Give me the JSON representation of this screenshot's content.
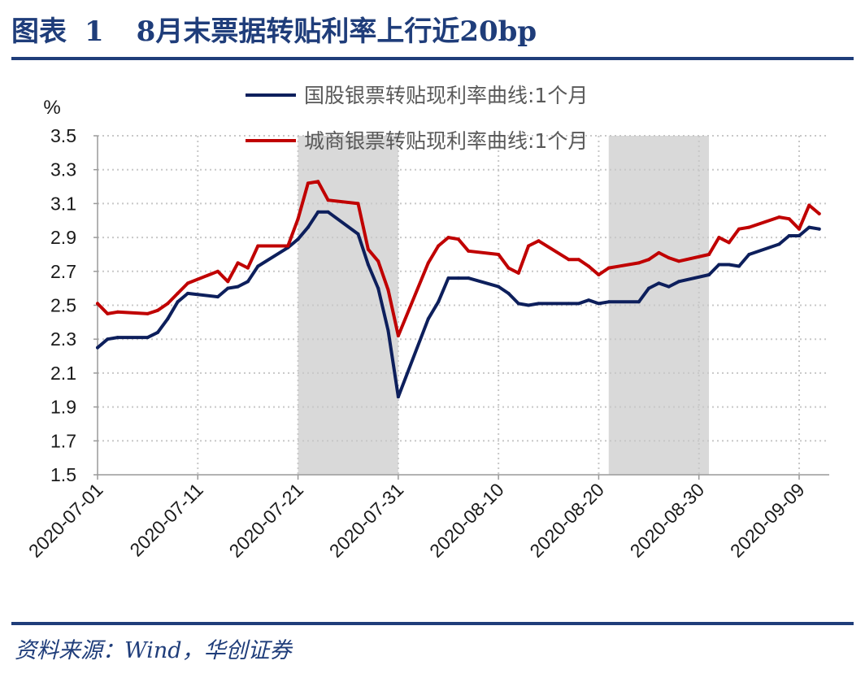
{
  "title": {
    "label": "图表",
    "number": "1",
    "text": "8月末票据转贴利率上行近20bp"
  },
  "source": "资料来源：Wind，华创证券",
  "colors": {
    "title_blue": "#1f3d7a",
    "series_navy": "#0d1f5c",
    "series_red": "#c00000",
    "shade": "#d9d9d9",
    "grid": "#c8c8c8",
    "axis_text": "#1a1a1a"
  },
  "chart_data": {
    "type": "line",
    "ylabel": "%",
    "ylim": [
      1.5,
      3.5
    ],
    "yticks": [
      "1.5",
      "1.7",
      "1.9",
      "2.1",
      "2.3",
      "2.5",
      "2.7",
      "2.9",
      "3.1",
      "3.3",
      "3.5"
    ],
    "xlim": [
      "2020-07-01",
      "2020-09-12"
    ],
    "xticks": [
      "2020-07-01",
      "2020-07-11",
      "2020-07-21",
      "2020-07-31",
      "2020-08-10",
      "2020-08-20",
      "2020-08-30",
      "2020-09-09"
    ],
    "grid": "dotted, both axes",
    "legend_position": "top-center",
    "shaded_ranges": [
      [
        "2020-07-21",
        "2020-07-31"
      ],
      [
        "2020-08-21",
        "2020-08-31"
      ]
    ],
    "series": [
      {
        "name": "国股银票转贴现利率曲线:1个月",
        "color": "#0d1f5c",
        "points": [
          [
            "2020-07-01",
            2.25
          ],
          [
            "2020-07-02",
            2.3
          ],
          [
            "2020-07-03",
            2.31
          ],
          [
            "2020-07-06",
            2.31
          ],
          [
            "2020-07-07",
            2.34
          ],
          [
            "2020-07-08",
            2.42
          ],
          [
            "2020-07-09",
            2.52
          ],
          [
            "2020-07-10",
            2.57
          ],
          [
            "2020-07-13",
            2.55
          ],
          [
            "2020-07-14",
            2.6
          ],
          [
            "2020-07-15",
            2.61
          ],
          [
            "2020-07-16",
            2.64
          ],
          [
            "2020-07-17",
            2.73
          ],
          [
            "2020-07-20",
            2.84
          ],
          [
            "2020-07-21",
            2.89
          ],
          [
            "2020-07-22",
            2.96
          ],
          [
            "2020-07-23",
            3.05
          ],
          [
            "2020-07-24",
            3.05
          ],
          [
            "2020-07-27",
            2.92
          ],
          [
            "2020-07-28",
            2.74
          ],
          [
            "2020-07-29",
            2.6
          ],
          [
            "2020-07-30",
            2.35
          ],
          [
            "2020-07-31",
            1.96
          ],
          [
            "2020-08-03",
            2.42
          ],
          [
            "2020-08-04",
            2.52
          ],
          [
            "2020-08-05",
            2.66
          ],
          [
            "2020-08-06",
            2.66
          ],
          [
            "2020-08-07",
            2.66
          ],
          [
            "2020-08-10",
            2.61
          ],
          [
            "2020-08-11",
            2.57
          ],
          [
            "2020-08-12",
            2.51
          ],
          [
            "2020-08-13",
            2.5
          ],
          [
            "2020-08-14",
            2.51
          ],
          [
            "2020-08-17",
            2.51
          ],
          [
            "2020-08-18",
            2.51
          ],
          [
            "2020-08-19",
            2.53
          ],
          [
            "2020-08-20",
            2.51
          ],
          [
            "2020-08-21",
            2.52
          ],
          [
            "2020-08-24",
            2.52
          ],
          [
            "2020-08-25",
            2.6
          ],
          [
            "2020-08-26",
            2.63
          ],
          [
            "2020-08-27",
            2.61
          ],
          [
            "2020-08-28",
            2.64
          ],
          [
            "2020-08-31",
            2.68
          ],
          [
            "2020-09-01",
            2.74
          ],
          [
            "2020-09-02",
            2.74
          ],
          [
            "2020-09-03",
            2.73
          ],
          [
            "2020-09-04",
            2.8
          ],
          [
            "2020-09-07",
            2.86
          ],
          [
            "2020-09-08",
            2.91
          ],
          [
            "2020-09-09",
            2.91
          ],
          [
            "2020-09-10",
            2.96
          ],
          [
            "2020-09-11",
            2.95
          ]
        ]
      },
      {
        "name": "城商银票转贴现利率曲线:1个月",
        "color": "#c00000",
        "points": [
          [
            "2020-07-01",
            2.51
          ],
          [
            "2020-07-02",
            2.45
          ],
          [
            "2020-07-03",
            2.46
          ],
          [
            "2020-07-06",
            2.45
          ],
          [
            "2020-07-07",
            2.47
          ],
          [
            "2020-07-08",
            2.51
          ],
          [
            "2020-07-09",
            2.57
          ],
          [
            "2020-07-10",
            2.63
          ],
          [
            "2020-07-13",
            2.7
          ],
          [
            "2020-07-14",
            2.64
          ],
          [
            "2020-07-15",
            2.75
          ],
          [
            "2020-07-16",
            2.72
          ],
          [
            "2020-07-17",
            2.85
          ],
          [
            "2020-07-20",
            2.85
          ],
          [
            "2020-07-21",
            3.01
          ],
          [
            "2020-07-22",
            3.22
          ],
          [
            "2020-07-23",
            3.23
          ],
          [
            "2020-07-24",
            3.12
          ],
          [
            "2020-07-27",
            3.1
          ],
          [
            "2020-07-28",
            2.83
          ],
          [
            "2020-07-29",
            2.76
          ],
          [
            "2020-07-30",
            2.59
          ],
          [
            "2020-07-31",
            2.32
          ],
          [
            "2020-08-03",
            2.75
          ],
          [
            "2020-08-04",
            2.85
          ],
          [
            "2020-08-05",
            2.9
          ],
          [
            "2020-08-06",
            2.89
          ],
          [
            "2020-08-07",
            2.82
          ],
          [
            "2020-08-10",
            2.8
          ],
          [
            "2020-08-11",
            2.72
          ],
          [
            "2020-08-12",
            2.69
          ],
          [
            "2020-08-13",
            2.85
          ],
          [
            "2020-08-14",
            2.88
          ],
          [
            "2020-08-17",
            2.77
          ],
          [
            "2020-08-18",
            2.77
          ],
          [
            "2020-08-19",
            2.73
          ],
          [
            "2020-08-20",
            2.68
          ],
          [
            "2020-08-21",
            2.72
          ],
          [
            "2020-08-24",
            2.75
          ],
          [
            "2020-08-25",
            2.77
          ],
          [
            "2020-08-26",
            2.81
          ],
          [
            "2020-08-27",
            2.78
          ],
          [
            "2020-08-28",
            2.76
          ],
          [
            "2020-08-31",
            2.8
          ],
          [
            "2020-09-01",
            2.9
          ],
          [
            "2020-09-02",
            2.87
          ],
          [
            "2020-09-03",
            2.95
          ],
          [
            "2020-09-04",
            2.96
          ],
          [
            "2020-09-07",
            3.02
          ],
          [
            "2020-09-08",
            3.01
          ],
          [
            "2020-09-09",
            2.95
          ],
          [
            "2020-09-10",
            3.09
          ],
          [
            "2020-09-11",
            3.04
          ]
        ]
      }
    ]
  }
}
